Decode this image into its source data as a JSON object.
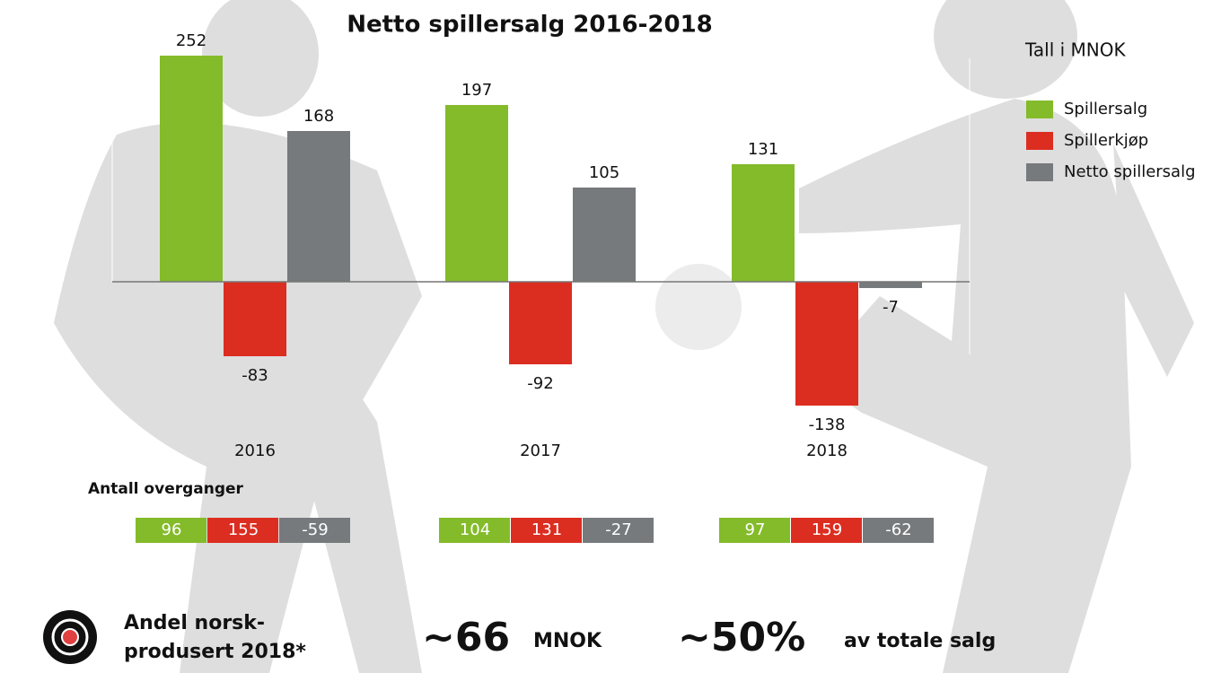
{
  "chart_data": {
    "type": "bar",
    "title": "Netto spillersalg 2016-2018",
    "unit_note": "Tall i MNOK",
    "categories": [
      "2016",
      "2017",
      "2018"
    ],
    "series": [
      {
        "name": "Spillersalg",
        "color": "#84bb2a",
        "values": [
          252,
          197,
          131
        ]
      },
      {
        "name": "Spillerkjøp",
        "color": "#dc2d21",
        "values": [
          -83,
          -92,
          -138
        ]
      },
      {
        "name": "Netto spillersalg",
        "color": "#767a7d",
        "values": [
          168,
          105,
          -7
        ]
      }
    ]
  },
  "transfers": {
    "title": "Antall overganger",
    "rows": [
      [
        96,
        155,
        -59
      ],
      [
        104,
        131,
        -27
      ],
      [
        97,
        159,
        -62
      ]
    ]
  },
  "footer": {
    "label_lines": [
      "Andel norsk-",
      "produsert 2018*"
    ],
    "amount": "~66",
    "amount_unit": "MNOK",
    "share": "~50%",
    "share_text": "av totale salg"
  }
}
